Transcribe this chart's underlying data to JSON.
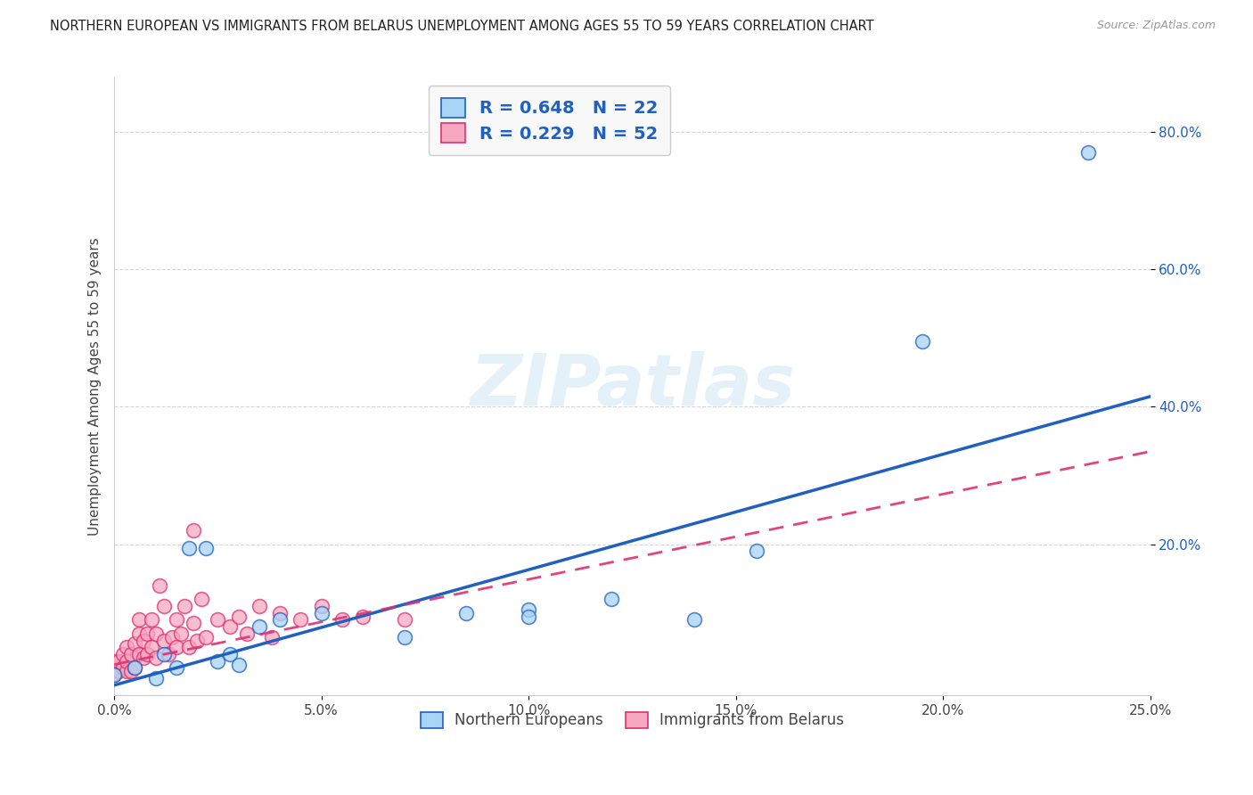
{
  "title": "NORTHERN EUROPEAN VS IMMIGRANTS FROM BELARUS UNEMPLOYMENT AMONG AGES 55 TO 59 YEARS CORRELATION CHART",
  "source": "Source: ZipAtlas.com",
  "xlabel": "",
  "ylabel": "Unemployment Among Ages 55 to 59 years",
  "xlim": [
    0,
    0.25
  ],
  "ylim": [
    -0.02,
    0.88
  ],
  "x_tick_labels": [
    "0.0%",
    "5.0%",
    "10.0%",
    "15.0%",
    "20.0%",
    "25.0%"
  ],
  "x_tick_values": [
    0,
    0.05,
    0.1,
    0.15,
    0.2,
    0.25
  ],
  "y_tick_labels": [
    "20.0%",
    "40.0%",
    "60.0%",
    "80.0%"
  ],
  "y_tick_values": [
    0.2,
    0.4,
    0.6,
    0.8
  ],
  "blue_R": 0.648,
  "blue_N": 22,
  "pink_R": 0.229,
  "pink_N": 52,
  "blue_color": "#a8d4f5",
  "pink_color": "#f5a8c0",
  "blue_line_color": "#2060c0",
  "pink_line_color": "#e03070",
  "watermark": "ZIPatlas",
  "blue_scatter_x": [
    0.0,
    0.005,
    0.01,
    0.012,
    0.015,
    0.018,
    0.022,
    0.025,
    0.028,
    0.03,
    0.035,
    0.04,
    0.05,
    0.07,
    0.085,
    0.1,
    0.1,
    0.12,
    0.14,
    0.155,
    0.195,
    0.235
  ],
  "blue_scatter_y": [
    0.01,
    0.02,
    0.005,
    0.04,
    0.02,
    0.195,
    0.195,
    0.03,
    0.04,
    0.025,
    0.08,
    0.09,
    0.1,
    0.065,
    0.1,
    0.105,
    0.095,
    0.12,
    0.09,
    0.19,
    0.495,
    0.77
  ],
  "pink_scatter_x": [
    0.0,
    0.0,
    0.0,
    0.001,
    0.001,
    0.002,
    0.002,
    0.003,
    0.003,
    0.003,
    0.004,
    0.004,
    0.005,
    0.005,
    0.006,
    0.006,
    0.006,
    0.007,
    0.007,
    0.008,
    0.008,
    0.009,
    0.009,
    0.01,
    0.01,
    0.011,
    0.012,
    0.012,
    0.013,
    0.014,
    0.015,
    0.015,
    0.016,
    0.017,
    0.018,
    0.019,
    0.019,
    0.02,
    0.021,
    0.022,
    0.025,
    0.028,
    0.03,
    0.032,
    0.035,
    0.038,
    0.04,
    0.045,
    0.05,
    0.055,
    0.06,
    0.07
  ],
  "pink_scatter_y": [
    0.01,
    0.02,
    0.03,
    0.015,
    0.03,
    0.02,
    0.04,
    0.015,
    0.03,
    0.05,
    0.015,
    0.04,
    0.02,
    0.055,
    0.04,
    0.07,
    0.09,
    0.035,
    0.06,
    0.04,
    0.07,
    0.05,
    0.09,
    0.035,
    0.07,
    0.14,
    0.06,
    0.11,
    0.04,
    0.065,
    0.05,
    0.09,
    0.07,
    0.11,
    0.05,
    0.085,
    0.22,
    0.06,
    0.12,
    0.065,
    0.09,
    0.08,
    0.095,
    0.07,
    0.11,
    0.065,
    0.1,
    0.09,
    0.11,
    0.09,
    0.095,
    0.09
  ],
  "legend_box_color": "#f8f8f8",
  "legend_text_color": "#2060c0",
  "bg_color": "#ffffff",
  "blue_line_x0": 0.0,
  "blue_line_y0": -0.005,
  "blue_line_x1": 0.25,
  "blue_line_y1": 0.415,
  "pink_line_x0": 0.0,
  "pink_line_y0": 0.025,
  "pink_line_x1": 0.25,
  "pink_line_y1": 0.335
}
